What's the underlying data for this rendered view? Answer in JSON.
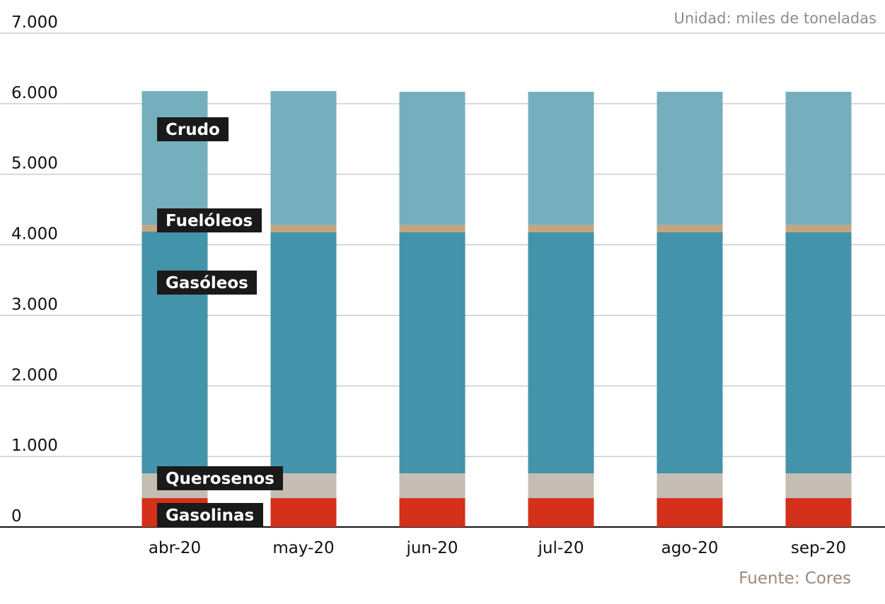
{
  "chart_data": {
    "type": "bar",
    "stacked": true,
    "categories": [
      "abr-20",
      "may-20",
      "jun-20",
      "jul-20",
      "ago-20",
      "sep-20"
    ],
    "series": [
      {
        "name": "Gasolinas",
        "color": "#d4301c",
        "values": [
          410,
          410,
          410,
          410,
          410,
          410
        ]
      },
      {
        "name": "Querosenos",
        "color": "#c5bdb3",
        "values": [
          350,
          350,
          350,
          350,
          350,
          350
        ]
      },
      {
        "name": "Gasóleos",
        "color": "#4393aa",
        "values": [
          3430,
          3420,
          3420,
          3420,
          3420,
          3420
        ]
      },
      {
        "name": "Fuelóleos",
        "color": "#c9a57e",
        "values": [
          90,
          100,
          100,
          100,
          100,
          100
        ]
      },
      {
        "name": "Crudo",
        "color": "#75afbe",
        "values": [
          1900,
          1900,
          1890,
          1890,
          1890,
          1890
        ]
      }
    ],
    "ylim": [
      0,
      7000
    ],
    "yticks": [
      0,
      1000,
      2000,
      3000,
      4000,
      5000,
      6000,
      7000
    ],
    "ytick_labels": [
      "0",
      "1.000",
      "2.000",
      "3.000",
      "4.000",
      "5.000",
      "6.000",
      "7.000"
    ],
    "grid": true,
    "legend": "inline labels on first bar",
    "label_box_color": "#1a1a1a"
  },
  "unit_note": "Unidad: miles de toneladas",
  "source_note": "Fuente: Cores"
}
